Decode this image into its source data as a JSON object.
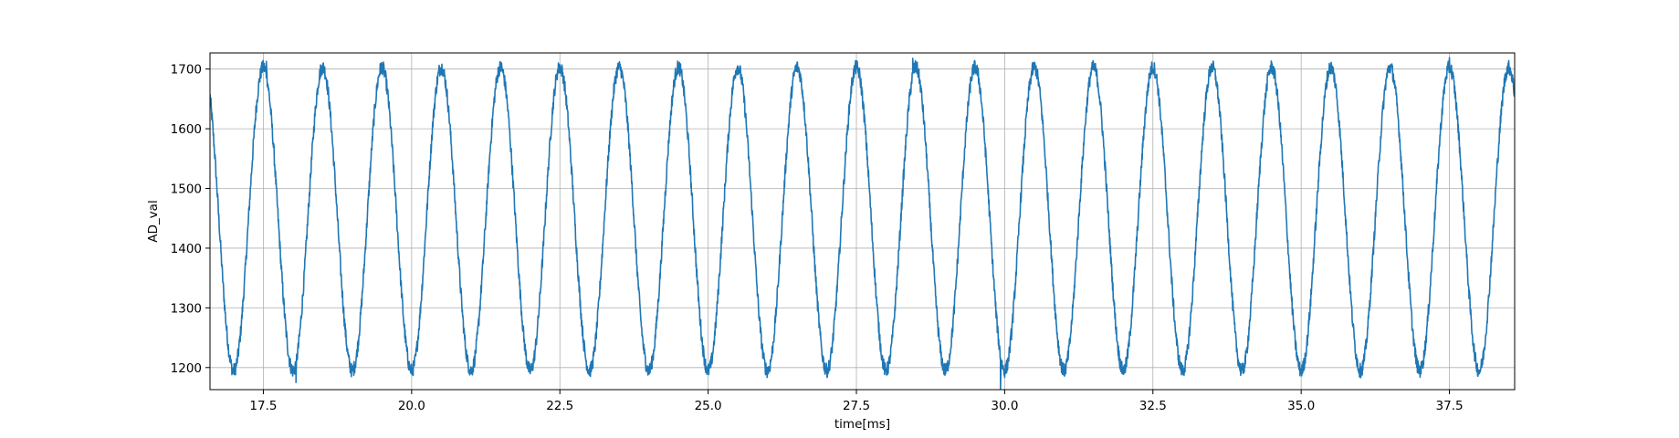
{
  "chart_data": {
    "type": "line",
    "xlabel": "time[ms]",
    "ylabel": "AD_val",
    "xlim": [
      16.6,
      38.6
    ],
    "ylim": [
      1163,
      1727
    ],
    "grid": true,
    "x_ticks": [
      17.5,
      20.0,
      22.5,
      25.0,
      27.5,
      30.0,
      32.5,
      35.0,
      37.5
    ],
    "x_tick_labels": [
      "17.5",
      "20.0",
      "22.5",
      "25.0",
      "27.5",
      "30.0",
      "32.5",
      "35.0",
      "37.5"
    ],
    "y_ticks": [
      1200,
      1300,
      1400,
      1500,
      1600,
      1700
    ],
    "y_tick_labels": [
      "1200",
      "1300",
      "1400",
      "1500",
      "1600",
      "1700"
    ],
    "series": [
      {
        "color": "#1f77b4",
        "signal": {
          "shape": "noisy sinusoid",
          "period_ms": 1.0,
          "min": 1195,
          "max": 1703,
          "first_peak_ms": 16.5,
          "noise_amplitude": 12
        },
        "extremes": [
          {
            "x": 17.55,
            "y": 1713
          },
          {
            "x": 18.05,
            "y": 1175
          },
          {
            "x": 29.93,
            "y": 1163
          },
          {
            "x": 28.45,
            "y": 1718
          },
          {
            "x": 37.5,
            "y": 1719
          }
        ]
      }
    ]
  }
}
